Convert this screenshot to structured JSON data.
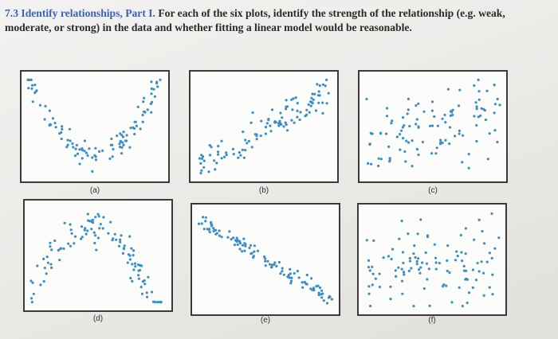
{
  "problem": {
    "number": "7.3",
    "title": "Identify relationships, Part I.",
    "body": "For each of the six plots, identify the strength of the relationship (e.g. weak, moderate, or strong) in the data and whether fitting a linear model would be reasonable."
  },
  "point_color": "#3b8fc4",
  "plots": [
    {
      "label": "(a)",
      "shape": "u-curve",
      "pattern": "strong curved U-shape"
    },
    {
      "label": "(b)",
      "shape": "linear-positive",
      "pattern": "moderate positive linear"
    },
    {
      "label": "(c)",
      "shape": "weak-positive",
      "pattern": "weak positive"
    },
    {
      "label": "(d)",
      "shape": "inverted-u",
      "pattern": "curved inverted U-shape"
    },
    {
      "label": "(e)",
      "shape": "linear-negative",
      "pattern": "strong negative linear"
    },
    {
      "label": "(f)",
      "shape": "none",
      "pattern": "no apparent relationship"
    }
  ]
}
